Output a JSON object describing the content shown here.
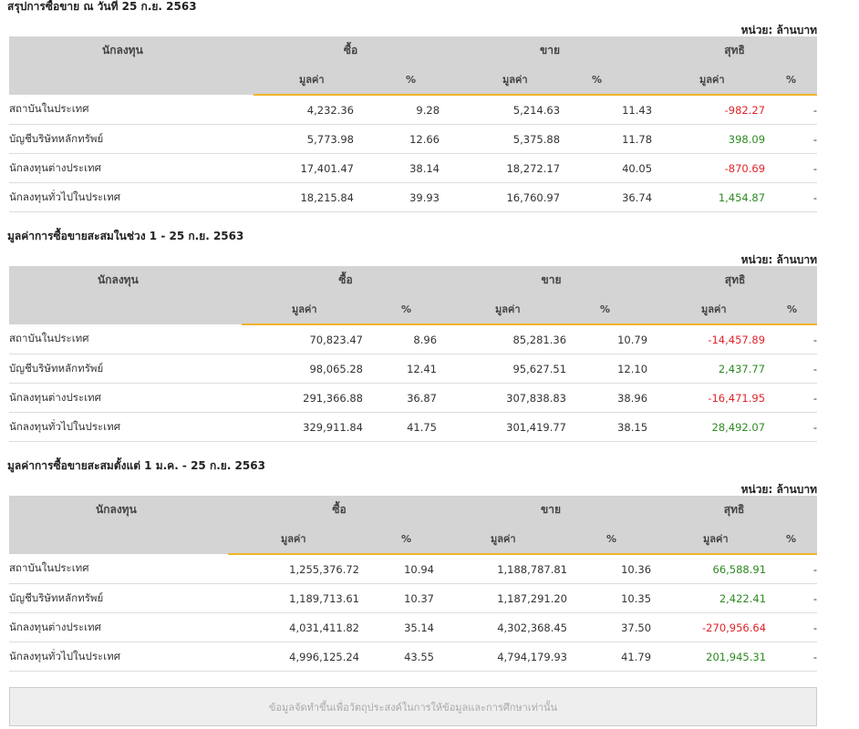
{
  "unit_label": "หน่วย: ล้านบาท",
  "headers": {
    "investor": "นักลงทุน",
    "buy": "ซื้อ",
    "sell": "ขาย",
    "net": "สุทธิ",
    "value": "มูลค่า",
    "percent": "%"
  },
  "colors": {
    "header_bg": "#d4d4d4",
    "accent_underline": "#f0b429",
    "negative": "#e0242a",
    "positive": "#2e8b22"
  },
  "sections": [
    {
      "title": "สรุปการซื้อขาย ณ วันที่ 25 ก.ย. 2563",
      "rows": [
        {
          "investor": "สถาบันในประเทศ",
          "buy_value": "4,232.36",
          "buy_pct": "9.28",
          "sell_value": "5,214.63",
          "sell_pct": "11.43",
          "net_value": "-982.27",
          "net_pct": "-"
        },
        {
          "investor": "บัญชีบริษัทหลักทรัพย์",
          "buy_value": "5,773.98",
          "buy_pct": "12.66",
          "sell_value": "5,375.88",
          "sell_pct": "11.78",
          "net_value": "398.09",
          "net_pct": "-"
        },
        {
          "investor": "นักลงทุนต่างประเทศ",
          "buy_value": "17,401.47",
          "buy_pct": "38.14",
          "sell_value": "18,272.17",
          "sell_pct": "40.05",
          "net_value": "-870.69",
          "net_pct": "-"
        },
        {
          "investor": "นักลงทุนทั่วไปในประเทศ",
          "buy_value": "18,215.84",
          "buy_pct": "39.93",
          "sell_value": "16,760.97",
          "sell_pct": "36.74",
          "net_value": "1,454.87",
          "net_pct": "-"
        }
      ]
    },
    {
      "title": "มูลค่าการซื้อขายสะสมในช่วง 1 - 25 ก.ย. 2563",
      "rows": [
        {
          "investor": "สถาบันในประเทศ",
          "buy_value": "70,823.47",
          "buy_pct": "8.96",
          "sell_value": "85,281.36",
          "sell_pct": "10.79",
          "net_value": "-14,457.89",
          "net_pct": "-"
        },
        {
          "investor": "บัญชีบริษัทหลักทรัพย์",
          "buy_value": "98,065.28",
          "buy_pct": "12.41",
          "sell_value": "95,627.51",
          "sell_pct": "12.10",
          "net_value": "2,437.77",
          "net_pct": "-"
        },
        {
          "investor": "นักลงทุนต่างประเทศ",
          "buy_value": "291,366.88",
          "buy_pct": "36.87",
          "sell_value": "307,838.83",
          "sell_pct": "38.96",
          "net_value": "-16,471.95",
          "net_pct": "-"
        },
        {
          "investor": "นักลงทุนทั่วไปในประเทศ",
          "buy_value": "329,911.84",
          "buy_pct": "41.75",
          "sell_value": "301,419.77",
          "sell_pct": "38.15",
          "net_value": "28,492.07",
          "net_pct": "-"
        }
      ]
    },
    {
      "title": "มูลค่าการซื้อขายสะสมตั้งแต่ 1 ม.ค. - 25 ก.ย. 2563",
      "rows": [
        {
          "investor": "สถาบันในประเทศ",
          "buy_value": "1,255,376.72",
          "buy_pct": "10.94",
          "sell_value": "1,188,787.81",
          "sell_pct": "10.36",
          "net_value": "66,588.91",
          "net_pct": "-"
        },
        {
          "investor": "บัญชีบริษัทหลักทรัพย์",
          "buy_value": "1,189,713.61",
          "buy_pct": "10.37",
          "sell_value": "1,187,291.20",
          "sell_pct": "10.35",
          "net_value": "2,422.41",
          "net_pct": "-"
        },
        {
          "investor": "นักลงทุนต่างประเทศ",
          "buy_value": "4,031,411.82",
          "buy_pct": "35.14",
          "sell_value": "4,302,368.45",
          "sell_pct": "37.50",
          "net_value": "-270,956.64",
          "net_pct": "-"
        },
        {
          "investor": "นักลงทุนทั่วไปในประเทศ",
          "buy_value": "4,996,125.24",
          "buy_pct": "43.55",
          "sell_value": "4,794,179.93",
          "sell_pct": "41.79",
          "net_value": "201,945.31",
          "net_pct": "-"
        }
      ]
    }
  ],
  "footer_note": "ข้อมูลจัดทำขึ้นเพื่อวัตถุประสงค์ในการให้ข้อมูลและการศึกษาเท่านั้น"
}
